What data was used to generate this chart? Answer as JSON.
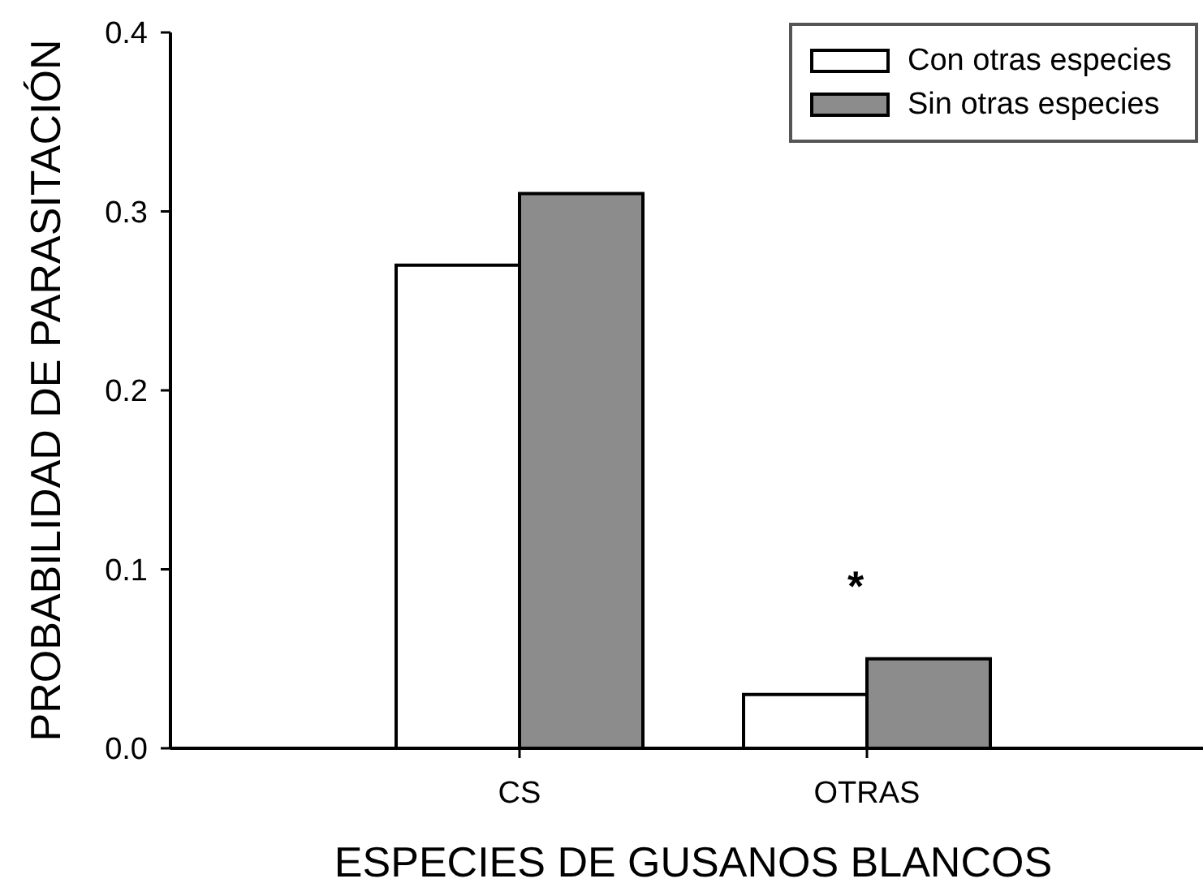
{
  "chart_data": {
    "type": "bar",
    "xlabel": "ESPECIES DE GUSANOS BLANCOS",
    "ylabel": "PROBABILIDAD DE PARASITACIÓN",
    "categories": [
      "CS",
      "OTRAS"
    ],
    "series": [
      {
        "name": "Con otras especies",
        "color": "#ffffff",
        "values": [
          0.27,
          0.03
        ]
      },
      {
        "name": "Sin otras especies",
        "color": "#8c8c8c",
        "values": [
          0.31,
          0.05
        ]
      }
    ],
    "ylim": [
      0,
      0.4
    ],
    "yticks": [
      {
        "value": 0,
        "label": "0.0"
      },
      0.1,
      0.2,
      0.3,
      0.4
    ],
    "annotations": [
      "*"
    ],
    "legend": "top right",
    "grid": false
  }
}
